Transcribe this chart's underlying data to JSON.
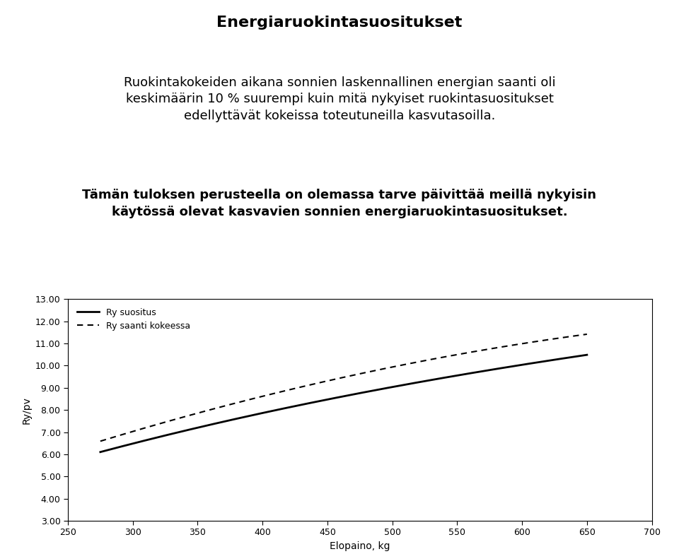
{
  "title": "Energiaruokintasuositukset",
  "paragraph1_line1": "Ruokintakokeiden aikana sonnien laskennallinen energian saanti oli",
  "paragraph1_line2": "keskimäärin 10 % suurempi kuin mitä nykyiset ruokintasuositukset",
  "paragraph1_line3": "edellyttävät kokeissa toteutuneilla kasvutasoilla.",
  "paragraph2_line1": "Tämän tuloksen perusteella on olemassa tarve päivittää meillä nykyisin",
  "paragraph2_line2": "käytössä olevat kasvavien sonnien energiaruokintasuositukset.",
  "xlabel": "Elopaino, kg",
  "ylabel": "Ry/pv",
  "xlim": [
    250,
    700
  ],
  "ylim": [
    3.0,
    13.0
  ],
  "xticks": [
    250,
    300,
    350,
    400,
    450,
    500,
    550,
    600,
    650,
    700
  ],
  "yticks": [
    3.0,
    4.0,
    5.0,
    6.0,
    7.0,
    8.0,
    9.0,
    10.0,
    11.0,
    12.0,
    13.0
  ],
  "legend_solid": "Ry suositus",
  "legend_dashed": "Ry saanti kokeessa",
  "background_color": "#ffffff",
  "line_color": "#000000",
  "x_solid": [
    275,
    300,
    325,
    350,
    375,
    400,
    425,
    450,
    475,
    500,
    525,
    550,
    575,
    600,
    625,
    650
  ],
  "y_solid": [
    6.15,
    6.45,
    6.8,
    7.18,
    7.55,
    7.9,
    8.2,
    8.5,
    8.75,
    9.0,
    9.3,
    9.55,
    9.8,
    10.05,
    10.25,
    10.5
  ],
  "x_dashed": [
    275,
    300,
    325,
    350,
    375,
    400,
    425,
    450,
    475,
    500,
    525,
    550,
    575,
    600,
    625,
    650
  ],
  "y_dashed": [
    6.6,
    7.0,
    7.45,
    7.85,
    8.25,
    8.65,
    9.0,
    9.3,
    9.65,
    9.95,
    10.2,
    10.45,
    10.75,
    11.0,
    11.2,
    11.45
  ]
}
